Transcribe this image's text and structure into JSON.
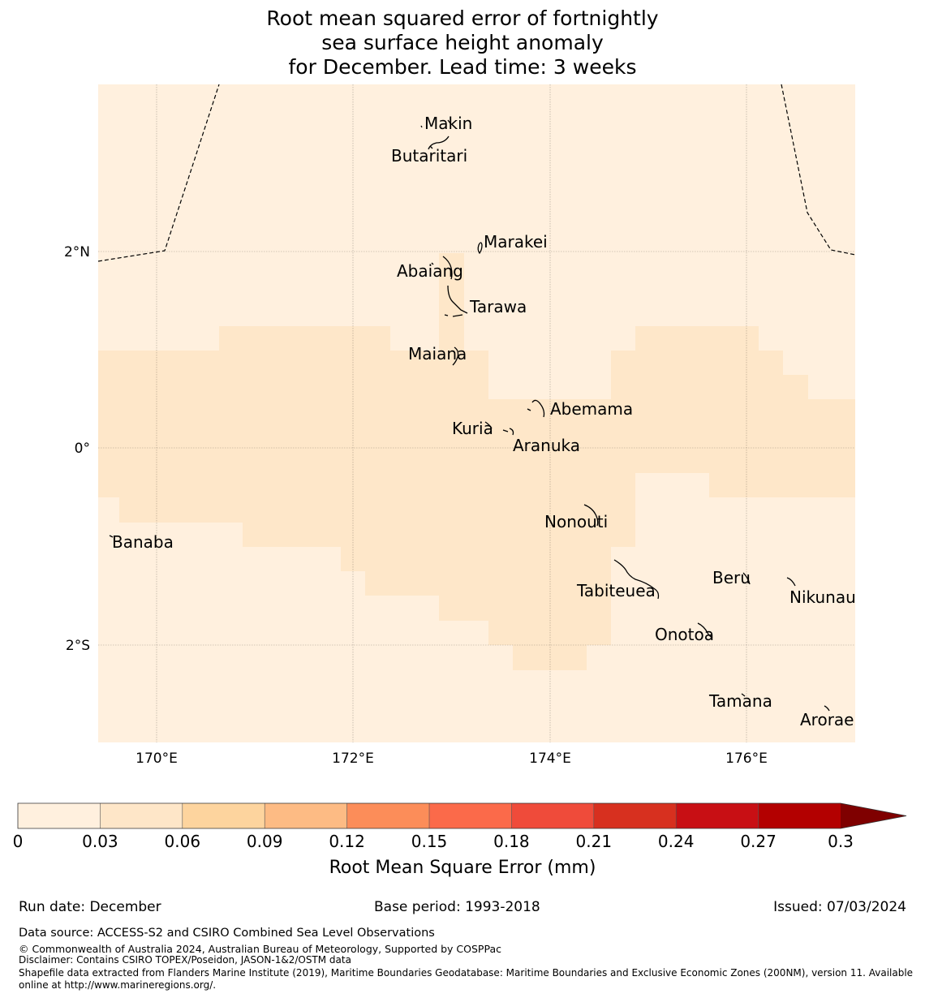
{
  "title": {
    "line1": "Root mean squared error of fortnightly",
    "line2": "sea surface height anomaly",
    "line3": "for December. Lead time: 3 weeks"
  },
  "map": {
    "lat_labels": [
      "2°N",
      "0°",
      "2°S"
    ],
    "lon_labels": [
      "170°E",
      "172°E",
      "174°E",
      "176°E"
    ],
    "lon_range": [
      169.4,
      177.1
    ],
    "lat_range": [
      -3.0,
      3.7
    ],
    "places": [
      {
        "name": "Makin",
        "lon": 173.0,
        "lat": 3.3
      },
      {
        "name": "Butaritari",
        "lon": 172.8,
        "lat": 3.0
      },
      {
        "name": "Marakei",
        "lon": 173.3,
        "lat": 2.0
      },
      {
        "name": "Abaiang",
        "lon": 172.9,
        "lat": 1.8
      },
      {
        "name": "Tarawa",
        "lon": 173.0,
        "lat": 1.4
      },
      {
        "name": "Maiana",
        "lon": 173.0,
        "lat": 0.9
      },
      {
        "name": "Abemama",
        "lon": 173.9,
        "lat": 0.4
      },
      {
        "name": "Kuria",
        "lon": 173.4,
        "lat": 0.2
      },
      {
        "name": "Aranuka",
        "lon": 173.6,
        "lat": 0.2
      },
      {
        "name": "Nonouti",
        "lon": 174.4,
        "lat": -0.6
      },
      {
        "name": "Banaba",
        "lon": 169.5,
        "lat": -0.9
      },
      {
        "name": "Tabiteuea",
        "lon": 174.8,
        "lat": -1.2
      },
      {
        "name": "Beru",
        "lon": 176.0,
        "lat": -1.3
      },
      {
        "name": "Nikunau",
        "lon": 176.5,
        "lat": -1.3
      },
      {
        "name": "Onotoa",
        "lon": 175.6,
        "lat": -1.8
      },
      {
        "name": "Tamana",
        "lon": 176.0,
        "lat": -2.5
      },
      {
        "name": "Arorae",
        "lon": 176.8,
        "lat": -2.6
      }
    ]
  },
  "colorbar": {
    "title": "Root Mean Square Error (mm)",
    "ticks": [
      "0",
      "0.03",
      "0.06",
      "0.09",
      "0.12",
      "0.15",
      "0.18",
      "0.21",
      "0.24",
      "0.27",
      "0.3"
    ],
    "colors": [
      "#fff0de",
      "#fee6c8",
      "#fdd49e",
      "#fdbb84",
      "#fc8d59",
      "#fb6a4a",
      "#ef4b3a",
      "#d7301f",
      "#c80f14",
      "#b30000",
      "#7f0000"
    ]
  },
  "footer": {
    "run_date": "Run date: December",
    "base_period": "Base period: 1993-2018",
    "issued": "Issued: 07/03/2024",
    "data_source": "Data source: ACCESS-S2 and CSIRO Combined Sea Level Observations",
    "copyright": "© Commonwealth of Australia 2024, Australian Bureau of Meteorology, Supported by COSPPac",
    "disclaimer": "Disclaimer: Contains CSIRO TOPEX/Poseidon, JASON-1&2/OSTM data",
    "shapefile_line1": "Shapefile data extracted from Flanders Marine Institute (2019), Maritime Boundaries Geodatabase: Maritime Boundaries and Exclusive Economic Zones (200NM), version 11. Available",
    "shapefile_line2": "online at http://www.marineregions.org/."
  }
}
